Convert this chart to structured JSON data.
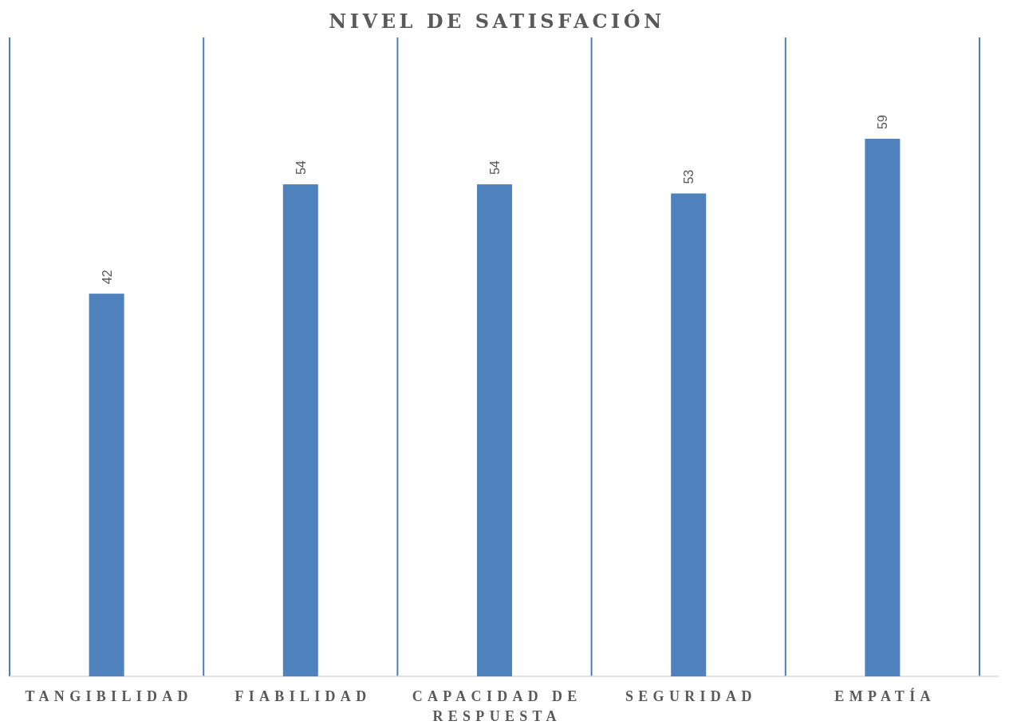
{
  "chart_data": {
    "type": "bar",
    "title": "NIVEL DE SATISFACIÓN",
    "categories": [
      "TANGIBILIDAD",
      "FIABILIDAD",
      "CAPACIDAD DE RESPUESTA",
      "SEGURIDAD",
      "EMPATÍA"
    ],
    "values": [
      42,
      54,
      54,
      53,
      59
    ],
    "color": "#4f81bd",
    "data_labels": true,
    "grid": "x"
  }
}
